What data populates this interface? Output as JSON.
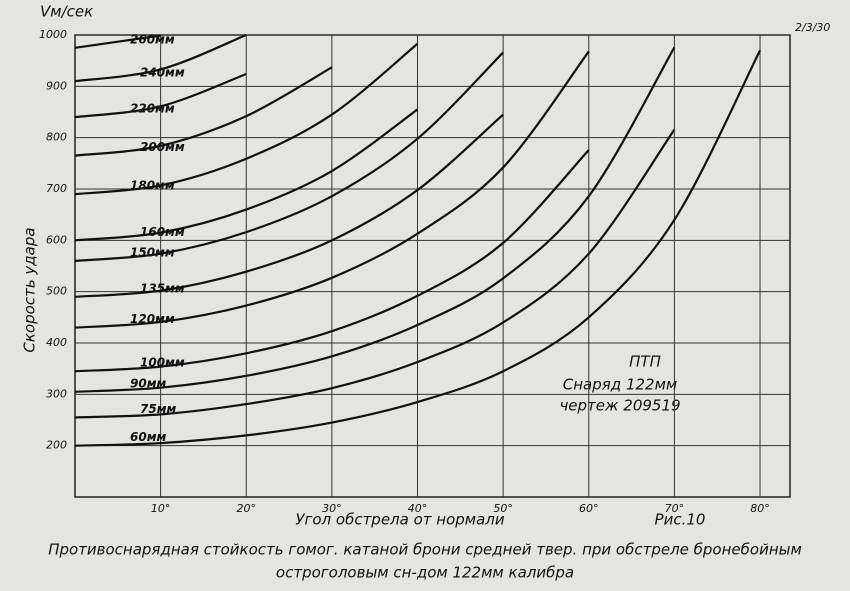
{
  "chart_data": {
    "type": "line",
    "title": "Противоснарядная стойкость гомог. катаной брони средней твер. при обстреле бронебойным",
    "subtitle": "остроголовым сн-дом 122мм калибра",
    "y_unit": "Vм/сек",
    "y_label": "Скорость удара",
    "x_label": "Угол обстрела от нормали",
    "figure_label": "Рис.10",
    "corner_note": "2/3/30",
    "note_lines": [
      "ПТП",
      "Снаряд 122мм",
      "чертеж 209519"
    ],
    "x": [
      0,
      10,
      20,
      30,
      40,
      50,
      60,
      70,
      80
    ],
    "xlim": [
      0,
      83.5
    ],
    "ylim": [
      100,
      1000
    ],
    "xticks": [
      {
        "value": 10,
        "label": "10°"
      },
      {
        "value": 20,
        "label": "20°"
      },
      {
        "value": 30,
        "label": "30°"
      },
      {
        "value": 40,
        "label": "40°"
      },
      {
        "value": 50,
        "label": "50°"
      },
      {
        "value": 60,
        "label": "60°"
      },
      {
        "value": 70,
        "label": "70°"
      },
      {
        "value": 80,
        "label": "80°"
      }
    ],
    "yticks": [
      200,
      300,
      400,
      500,
      600,
      700,
      800,
      900,
      1000
    ],
    "grid": true,
    "series": [
      {
        "name": "260мм",
        "color": "#111111",
        "values": [
          975,
          999,
          null,
          null,
          null,
          null,
          null,
          null,
          null
        ]
      },
      {
        "name": "240мм",
        "color": "#111111",
        "values": [
          910,
          933,
          1000,
          null,
          null,
          null,
          null,
          null,
          null
        ]
      },
      {
        "name": "220мм",
        "color": "#111111",
        "values": [
          840,
          861,
          924,
          null,
          null,
          null,
          null,
          null,
          null
        ]
      },
      {
        "name": "200мм",
        "color": "#111111",
        "values": [
          765,
          784,
          842,
          937,
          null,
          null,
          null,
          null,
          null
        ]
      },
      {
        "name": "180мм",
        "color": "#111111",
        "values": [
          690,
          707,
          759,
          845,
          983,
          null,
          null,
          null,
          null
        ]
      },
      {
        "name": "160мм",
        "color": "#111111",
        "values": [
          600,
          615,
          660,
          735,
          855,
          null,
          null,
          null,
          null
        ]
      },
      {
        "name": "150мм",
        "color": "#111111",
        "values": [
          560,
          574,
          616,
          686,
          798,
          966,
          null,
          null,
          null
        ]
      },
      {
        "name": "135мм",
        "color": "#111111",
        "values": [
          490,
          502,
          539,
          600,
          698,
          845,
          null,
          null,
          null
        ]
      },
      {
        "name": "120мм",
        "color": "#111111",
        "values": [
          430,
          441,
          473,
          527,
          613,
          742,
          968,
          null,
          null
        ]
      },
      {
        "name": "100мм",
        "color": "#111111",
        "values": [
          345,
          354,
          380,
          423,
          492,
          595,
          776,
          null,
          null
        ]
      },
      {
        "name": "90мм",
        "color": "#111111",
        "values": [
          305,
          313,
          336,
          374,
          435,
          526,
          686,
          976,
          null
        ]
      },
      {
        "name": "75мм",
        "color": "#111111",
        "values": [
          255,
          261,
          281,
          312,
          363,
          440,
          574,
          816,
          null
        ]
      },
      {
        "name": "60мм",
        "color": "#111111",
        "values": [
          200,
          205,
          220,
          245,
          285,
          345,
          450,
          640,
          970
        ]
      }
    ]
  }
}
